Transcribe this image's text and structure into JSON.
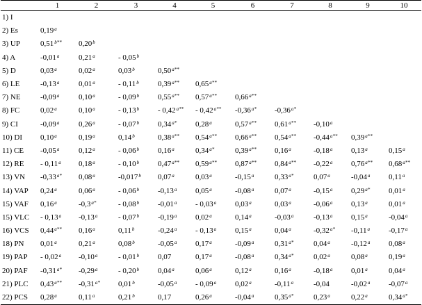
{
  "table": {
    "headers": [
      "",
      "1",
      "2",
      "3",
      "4",
      "5",
      "6",
      "7",
      "8",
      "9",
      "10"
    ],
    "rows": [
      {
        "label": "1) I",
        "cells": []
      },
      {
        "label": "2) Es",
        "cells": [
          {
            "v": "0,19",
            "s": "a"
          }
        ]
      },
      {
        "label": "3) UP",
        "cells": [
          {
            "v": "0,51",
            "s": "b**"
          },
          {
            "v": "0,20",
            "s": "b"
          }
        ]
      },
      {
        "label": "4) A",
        "cells": [
          {
            "v": "-0,01",
            "s": "a"
          },
          {
            "v": "0,21",
            "s": "a"
          },
          {
            "v": "- 0,05",
            "s": "b"
          }
        ]
      },
      {
        "label": "5) D",
        "cells": [
          {
            "v": "0,03",
            "s": "a"
          },
          {
            "v": "0,02",
            "s": "a"
          },
          {
            "v": "0,03",
            "s": "b"
          },
          {
            "v": "0,50",
            "s": "a**"
          }
        ]
      },
      {
        "label": "6) LE",
        "cells": [
          {
            "v": "-0,13",
            "s": "a"
          },
          {
            "v": "0,01",
            "s": "a"
          },
          {
            "v": "- 0,11",
            "s": "b"
          },
          {
            "v": "0,39",
            "s": "a**"
          },
          {
            "v": "0,65",
            "s": "a**"
          }
        ]
      },
      {
        "label": "7) NE",
        "cells": [
          {
            "v": "-0,09",
            "s": "a"
          },
          {
            "v": "0,10",
            "s": "a"
          },
          {
            "v": "- 0,09",
            "s": "b"
          },
          {
            "v": "0,55",
            "s": "a**"
          },
          {
            "v": "0,57",
            "s": "a**"
          },
          {
            "v": "0,66",
            "s": "a**"
          }
        ]
      },
      {
        "label": "8) FC",
        "cells": [
          {
            "v": "0,02",
            "s": "a"
          },
          {
            "v": "0,10",
            "s": "a"
          },
          {
            "v": "- 0,13",
            "s": "b"
          },
          {
            "v": "- 0,42",
            "s": "a**"
          },
          {
            "v": "- 0,42",
            "s": "a**"
          },
          {
            "v": "-0,36",
            "s": "a*"
          },
          {
            "v": "-0,36",
            "s": "a*"
          }
        ]
      },
      {
        "label": "9) CI",
        "cells": [
          {
            "v": "-0,09",
            "s": "a"
          },
          {
            "v": "0,26",
            "s": "a"
          },
          {
            "v": "- 0,07",
            "s": "b"
          },
          {
            "v": "0,34",
            "s": "a*"
          },
          {
            "v": "0,28",
            "s": "a"
          },
          {
            "v": "0,57",
            "s": "a**"
          },
          {
            "v": "0,61",
            "s": "a**"
          },
          {
            "v": "-0,10",
            "s": "a"
          }
        ]
      },
      {
        "label": "10) DI",
        "cells": [
          {
            "v": "0,10",
            "s": "a"
          },
          {
            "v": "0,19",
            "s": "a"
          },
          {
            "v": "0,14",
            "s": "b"
          },
          {
            "v": "0,38",
            "s": "a**"
          },
          {
            "v": "0,54",
            "s": "a**"
          },
          {
            "v": "0,66",
            "s": "a**"
          },
          {
            "v": "0,54",
            "s": "a**"
          },
          {
            "v": "-0,44",
            "s": "a**"
          },
          {
            "v": "0,39",
            "s": "a**"
          }
        ]
      },
      {
        "label": "11) CE",
        "cells": [
          {
            "v": "-0,05",
            "s": "a"
          },
          {
            "v": "0,12",
            "s": "a"
          },
          {
            "v": "- 0,06",
            "s": "b"
          },
          {
            "v": "0,16",
            "s": "a"
          },
          {
            "v": "0,34",
            "s": "a*"
          },
          {
            "v": "0,39",
            "s": "a**"
          },
          {
            "v": "0,16",
            "s": "a"
          },
          {
            "v": "-0,18",
            "s": "a"
          },
          {
            "v": "0,13",
            "s": "a"
          },
          {
            "v": "0,15",
            "s": "a"
          }
        ]
      },
      {
        "label": "12) RE",
        "cells": [
          {
            "v": "- 0,11",
            "s": "a"
          },
          {
            "v": "0,18",
            "s": "a"
          },
          {
            "v": "- 0,10",
            "s": "b"
          },
          {
            "v": "0,47",
            "s": "a**"
          },
          {
            "v": "0,59",
            "s": "a**"
          },
          {
            "v": "0,87",
            "s": "a**"
          },
          {
            "v": "0,84",
            "s": "a**"
          },
          {
            "v": "-0,22",
            "s": "a"
          },
          {
            "v": "0,76",
            "s": "a**"
          },
          {
            "v": "0,68",
            "s": "a**"
          }
        ]
      },
      {
        "label": "13) VN",
        "cells": [
          {
            "v": "-0,33",
            "s": "a*"
          },
          {
            "v": "0,08",
            "s": "a"
          },
          {
            "v": "-0,017",
            "s": "b"
          },
          {
            "v": "0,07",
            "s": "a"
          },
          {
            "v": "0,03",
            "s": "a"
          },
          {
            "v": "-0,15",
            "s": "a"
          },
          {
            "v": "0,33",
            "s": "a*"
          },
          {
            "v": "0,07",
            "s": "a"
          },
          {
            "v": "-0,04",
            "s": "a"
          },
          {
            "v": "0,11",
            "s": "a"
          }
        ]
      },
      {
        "label": "14) VAP",
        "cells": [
          {
            "v": "0,24",
            "s": "a"
          },
          {
            "v": "0,06",
            "s": "a"
          },
          {
            "v": "- 0,06",
            "s": "b"
          },
          {
            "v": "-0,13",
            "s": "a"
          },
          {
            "v": "0,05",
            "s": "a"
          },
          {
            "v": "-0,08",
            "s": "a"
          },
          {
            "v": "0,07",
            "s": "a"
          },
          {
            "v": "-0,15",
            "s": "a"
          },
          {
            "v": "0,29",
            "s": "a*"
          },
          {
            "v": "0,01",
            "s": "a"
          }
        ]
      },
      {
        "label": "15) VAF",
        "cells": [
          {
            "v": "0,16",
            "s": "a"
          },
          {
            "v": "-0,3",
            "s": "a*"
          },
          {
            "v": "- 0,08",
            "s": "b"
          },
          {
            "v": "-0,01",
            "s": "a"
          },
          {
            "v": "- 0,03",
            "s": "a"
          },
          {
            "v": "0,03",
            "s": "a"
          },
          {
            "v": "0,03",
            "s": "a"
          },
          {
            "v": "-0,06",
            "s": "a"
          },
          {
            "v": "0,13",
            "s": "a"
          },
          {
            "v": "0,01",
            "s": "a"
          }
        ]
      },
      {
        "label": "15) VLC",
        "cells": [
          {
            "v": "- 0,13",
            "s": "a"
          },
          {
            "v": "-0,13",
            "s": "a"
          },
          {
            "v": "- 0,07",
            "s": "b"
          },
          {
            "v": "-0,19",
            "s": "a"
          },
          {
            "v": "0,02",
            "s": "a"
          },
          {
            "v": "0,14",
            "s": "a"
          },
          {
            "v": "-0,03",
            "s": "a"
          },
          {
            "v": "-0,13",
            "s": "a"
          },
          {
            "v": "0,15",
            "s": "a"
          },
          {
            "v": "-0,04",
            "s": "a"
          }
        ]
      },
      {
        "label": "16) VCS",
        "cells": [
          {
            "v": "0,44",
            "s": "a**"
          },
          {
            "v": "0,16",
            "s": "a"
          },
          {
            "v": "0,11",
            "s": "b"
          },
          {
            "v": "-0,24",
            "s": "a"
          },
          {
            "v": "- 0,13",
            "s": "a"
          },
          {
            "v": "0,15",
            "s": "a"
          },
          {
            "v": "0,04",
            "s": "a"
          },
          {
            "v": "-0,32",
            "s": "a*"
          },
          {
            "v": "-0,11",
            "s": "a"
          },
          {
            "v": "-0,17",
            "s": "a"
          }
        ]
      },
      {
        "label": "18) PN",
        "cells": [
          {
            "v": "0,01",
            "s": "a"
          },
          {
            "v": "0,21",
            "s": "a"
          },
          {
            "v": "0,08",
            "s": "b"
          },
          {
            "v": "-0,05",
            "s": "a"
          },
          {
            "v": "0,17",
            "s": "a"
          },
          {
            "v": "-0,09",
            "s": "a"
          },
          {
            "v": "0,31",
            "s": "a*"
          },
          {
            "v": "0,04",
            "s": "a"
          },
          {
            "v": "-0,12",
            "s": "a"
          },
          {
            "v": "0,08",
            "s": "a"
          }
        ]
      },
      {
        "label": "19) PAP",
        "cells": [
          {
            "v": "- 0,02",
            "s": "a"
          },
          {
            "v": "-0,10",
            "s": "a"
          },
          {
            "v": "- 0,01",
            "s": "b"
          },
          {
            "v": "0,07",
            "s": ""
          },
          {
            "v": "0,17",
            "s": "a"
          },
          {
            "v": "-0,08",
            "s": "a"
          },
          {
            "v": "0,34",
            "s": "a*"
          },
          {
            "v": "0,02",
            "s": "a"
          },
          {
            "v": "0,08",
            "s": "a"
          },
          {
            "v": "0,19",
            "s": "a"
          }
        ]
      },
      {
        "label": "20) PAF",
        "cells": [
          {
            "v": "-0,31",
            "s": "a*"
          },
          {
            "v": "-0,29",
            "s": "a"
          },
          {
            "v": "- 0,20",
            "s": "b"
          },
          {
            "v": "0,04",
            "s": "a"
          },
          {
            "v": "0,06",
            "s": "a"
          },
          {
            "v": "0,12",
            "s": "a"
          },
          {
            "v": "0,16",
            "s": "a"
          },
          {
            "v": "-0,18",
            "s": "a"
          },
          {
            "v": "0,01",
            "s": "a"
          },
          {
            "v": "0,04",
            "s": "a"
          }
        ]
      },
      {
        "label": "21) PLC",
        "cells": [
          {
            "v": "0,43",
            "s": "a**"
          },
          {
            "v": "-0,31",
            "s": "a*"
          },
          {
            "v": "0,01",
            "s": "b"
          },
          {
            "v": "-0,05",
            "s": "a"
          },
          {
            "v": "- 0,09",
            "s": "a"
          },
          {
            "v": "0,02",
            "s": "a"
          },
          {
            "v": "-0,11",
            "s": "a"
          },
          {
            "v": "-0,04",
            "s": ""
          },
          {
            "v": "-0,02",
            "s": "a"
          },
          {
            "v": "-0,07",
            "s": "a"
          }
        ]
      },
      {
        "label": "22) PCS",
        "cells": [
          {
            "v": "0,28",
            "s": "a"
          },
          {
            "v": "0,11",
            "s": "a"
          },
          {
            "v": "0,21",
            "s": "b"
          },
          {
            "v": "0,17",
            "s": ""
          },
          {
            "v": "0,26",
            "s": "a"
          },
          {
            "v": "-0,04",
            "s": "a"
          },
          {
            "v": "0,35",
            "s": "a*"
          },
          {
            "v": "0,23",
            "s": "a"
          },
          {
            "v": "0,22",
            "s": "a"
          },
          {
            "v": "0,34",
            "s": "a*"
          }
        ]
      }
    ]
  }
}
